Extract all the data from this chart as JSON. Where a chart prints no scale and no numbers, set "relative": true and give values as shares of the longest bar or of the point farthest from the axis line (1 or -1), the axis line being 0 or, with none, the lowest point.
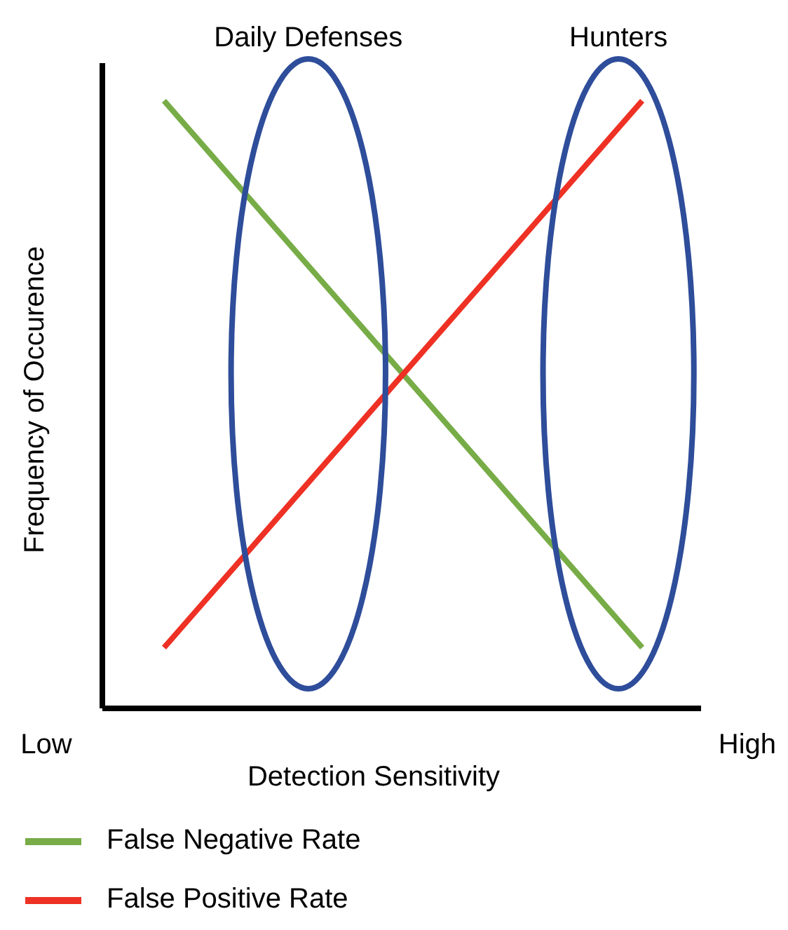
{
  "chart_data": {
    "type": "line",
    "relative": true,
    "xlabel": "Detection Sensitivity",
    "ylabel": "Frequency of Occurence",
    "categories": [
      null,
      null
    ],
    "series": [
      {
        "name": "False Negative Rate",
        "color": "#77ac47",
        "values": [
          1,
          0.1
        ]
      },
      {
        "name": "False Positive Rate",
        "color": "#ee3124",
        "values": [
          0.1,
          1
        ]
      }
    ],
    "annotations": [
      "Daily Defenses",
      "Hunters",
      "Low",
      "High"
    ],
    "legend": "bottom left",
    "line_style": "solid"
  }
}
